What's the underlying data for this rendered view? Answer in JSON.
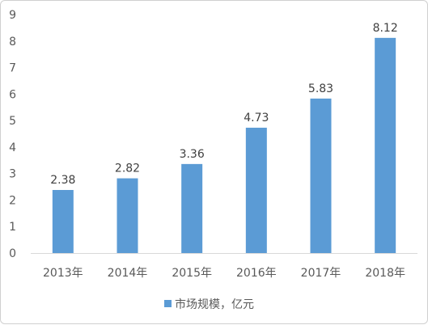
{
  "chart_data": {
    "type": "bar",
    "categories": [
      "2013年",
      "2014年",
      "2015年",
      "2016年",
      "2017年",
      "2018年"
    ],
    "series": [
      {
        "name": "市场规模，亿元",
        "values": [
          2.38,
          2.82,
          3.36,
          4.73,
          5.83,
          8.12
        ],
        "color": "#5b9bd5"
      }
    ],
    "data_labels": [
      "2.38",
      "2.82",
      "3.36",
      "4.73",
      "5.83",
      "8.12"
    ],
    "yticks": [
      "0",
      "1",
      "2",
      "3",
      "4",
      "5",
      "6",
      "7",
      "8",
      "9"
    ],
    "ylim": [
      0,
      9
    ],
    "grid": false,
    "legend_position": "bottom",
    "axis_color": "#d9d9d9"
  }
}
